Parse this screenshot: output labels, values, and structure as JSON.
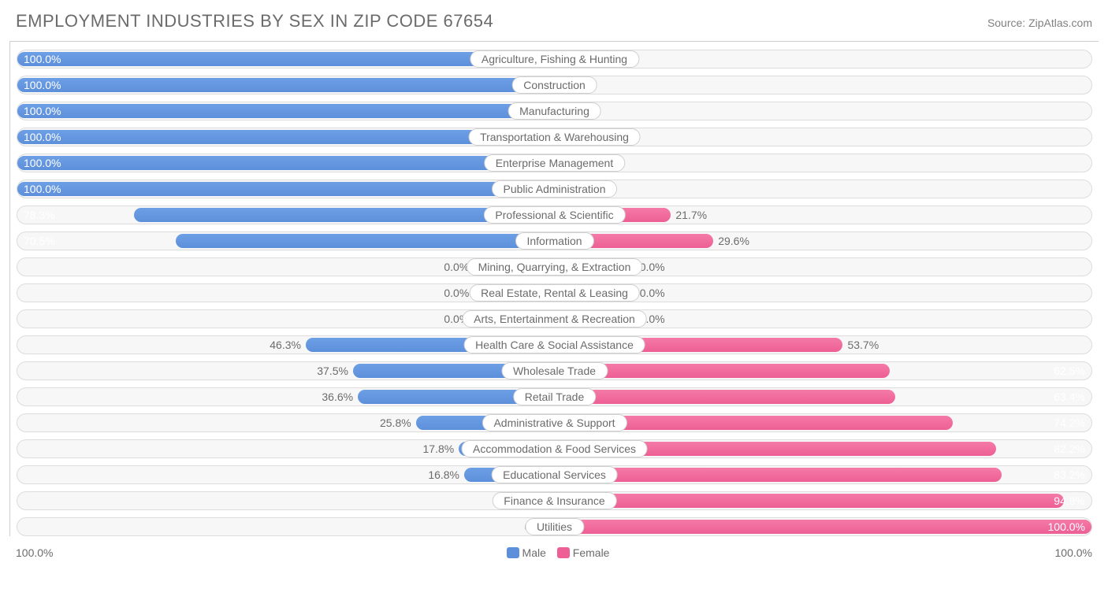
{
  "title": "EMPLOYMENT INDUSTRIES BY SEX IN ZIP CODE 67654",
  "source": "Source: ZipAtlas.com",
  "type": "diverging-bar",
  "colors": {
    "male": "#5d90da",
    "male_light": "#9bb9eb",
    "female": "#ed5f95",
    "female_light": "#f6a5c3",
    "row_bg": "#f7f7f7",
    "row_border": "#dcdcdc",
    "text": "#6b6b6b"
  },
  "legend": {
    "male": "Male",
    "female": "Female"
  },
  "axis": {
    "left": "100.0%",
    "right": "100.0%"
  },
  "residual_bar_pct": 15,
  "rows": [
    {
      "category": "Agriculture, Fishing & Hunting",
      "male": 100.0,
      "female": 0.0
    },
    {
      "category": "Construction",
      "male": 100.0,
      "female": 0.0
    },
    {
      "category": "Manufacturing",
      "male": 100.0,
      "female": 0.0
    },
    {
      "category": "Transportation & Warehousing",
      "male": 100.0,
      "female": 0.0
    },
    {
      "category": "Enterprise Management",
      "male": 100.0,
      "female": 0.0
    },
    {
      "category": "Public Administration",
      "male": 100.0,
      "female": 0.0
    },
    {
      "category": "Professional & Scientific",
      "male": 78.3,
      "female": 21.7
    },
    {
      "category": "Information",
      "male": 70.5,
      "female": 29.6
    },
    {
      "category": "Mining, Quarrying, & Extraction",
      "male": 0.0,
      "female": 0.0
    },
    {
      "category": "Real Estate, Rental & Leasing",
      "male": 0.0,
      "female": 0.0
    },
    {
      "category": "Arts, Entertainment & Recreation",
      "male": 0.0,
      "female": 0.0
    },
    {
      "category": "Health Care & Social Assistance",
      "male": 46.3,
      "female": 53.7
    },
    {
      "category": "Wholesale Trade",
      "male": 37.5,
      "female": 62.5
    },
    {
      "category": "Retail Trade",
      "male": 36.6,
      "female": 63.4
    },
    {
      "category": "Administrative & Support",
      "male": 25.8,
      "female": 74.2
    },
    {
      "category": "Accommodation & Food Services",
      "male": 17.8,
      "female": 82.2
    },
    {
      "category": "Educational Services",
      "male": 16.8,
      "female": 83.2
    },
    {
      "category": "Finance & Insurance",
      "male": 5.2,
      "female": 94.8
    },
    {
      "category": "Utilities",
      "male": 0.0,
      "female": 100.0
    }
  ]
}
